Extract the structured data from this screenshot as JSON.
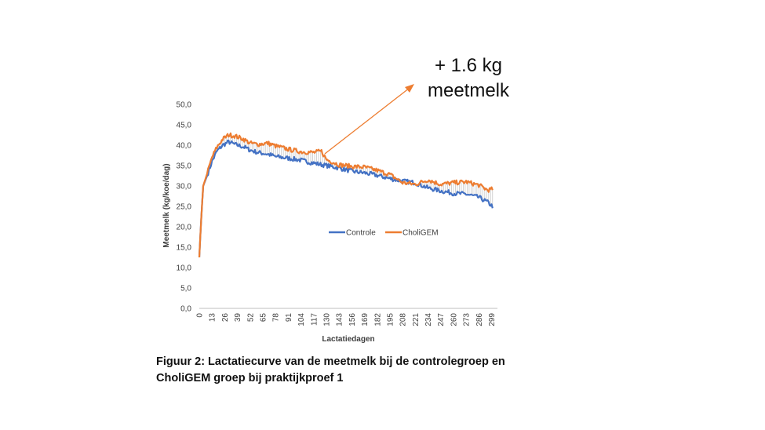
{
  "chart_data": {
    "type": "line",
    "xlabel": "Lactatiedagen",
    "ylabel": "Meetmelk (kg/koe/dag)",
    "ylim": [
      0,
      50
    ],
    "yticks": [
      "0,0",
      "5,0",
      "10,0",
      "15,0",
      "20,0",
      "25,0",
      "30,0",
      "35,0",
      "40,0",
      "45,0",
      "50,0"
    ],
    "xlim": [
      0,
      305
    ],
    "xticks": [
      0,
      13,
      26,
      39,
      52,
      65,
      78,
      91,
      104,
      117,
      130,
      143,
      156,
      169,
      182,
      195,
      208,
      221,
      234,
      247,
      260,
      273,
      286,
      299
    ],
    "grid": false,
    "legend_position": "center",
    "series": [
      {
        "name": "Controle",
        "color": "#4472C4",
        "points": [
          [
            0,
            12.5
          ],
          [
            2,
            22
          ],
          [
            4,
            30
          ],
          [
            8,
            32.5
          ],
          [
            13,
            36
          ],
          [
            18,
            38.5
          ],
          [
            24,
            40
          ],
          [
            30,
            40.8
          ],
          [
            36,
            40.2
          ],
          [
            45,
            39.6
          ],
          [
            52,
            38.8
          ],
          [
            60,
            38.2
          ],
          [
            70,
            37.8
          ],
          [
            78,
            37.2
          ],
          [
            91,
            36.8
          ],
          [
            104,
            36.3
          ],
          [
            117,
            35.6
          ],
          [
            130,
            35
          ],
          [
            143,
            34.4
          ],
          [
            156,
            33.6
          ],
          [
            169,
            33.2
          ],
          [
            182,
            32.6
          ],
          [
            195,
            31.8
          ],
          [
            208,
            31.2
          ],
          [
            221,
            30.8
          ],
          [
            234,
            29.5
          ],
          [
            247,
            28.8
          ],
          [
            260,
            28.2
          ],
          [
            273,
            28
          ],
          [
            286,
            27.2
          ],
          [
            295,
            26
          ],
          [
            300,
            25
          ]
        ]
      },
      {
        "name": "CholiGEM",
        "color": "#ED7D31",
        "points": [
          [
            0,
            12.5
          ],
          [
            2,
            22
          ],
          [
            4,
            30
          ],
          [
            8,
            33
          ],
          [
            13,
            37
          ],
          [
            18,
            39.5
          ],
          [
            24,
            41.5
          ],
          [
            30,
            42.5
          ],
          [
            36,
            42.3
          ],
          [
            45,
            41.5
          ],
          [
            52,
            40.5
          ],
          [
            60,
            40.2
          ],
          [
            70,
            40.5
          ],
          [
            78,
            39.8
          ],
          [
            91,
            39
          ],
          [
            104,
            38.4
          ],
          [
            117,
            38.2
          ],
          [
            125,
            38.5
          ],
          [
            130,
            36.5
          ],
          [
            143,
            35.2
          ],
          [
            156,
            34.8
          ],
          [
            169,
            34.6
          ],
          [
            182,
            33.8
          ],
          [
            195,
            32.8
          ],
          [
            208,
            30.8
          ],
          [
            221,
            30.4
          ],
          [
            234,
            31.5
          ],
          [
            247,
            30.4
          ],
          [
            260,
            30.8
          ],
          [
            273,
            31
          ],
          [
            286,
            30.2
          ],
          [
            295,
            29
          ],
          [
            300,
            29.2
          ]
        ]
      }
    ]
  },
  "annotation": {
    "line1": "+ 1.6 kg",
    "line2": "meetmelk"
  },
  "caption": {
    "line1": "Figuur 2: Lactatiecurve van de meetmelk bij de controlegroep en",
    "line2": "CholiGEM groep bij praktijkproef 1"
  }
}
